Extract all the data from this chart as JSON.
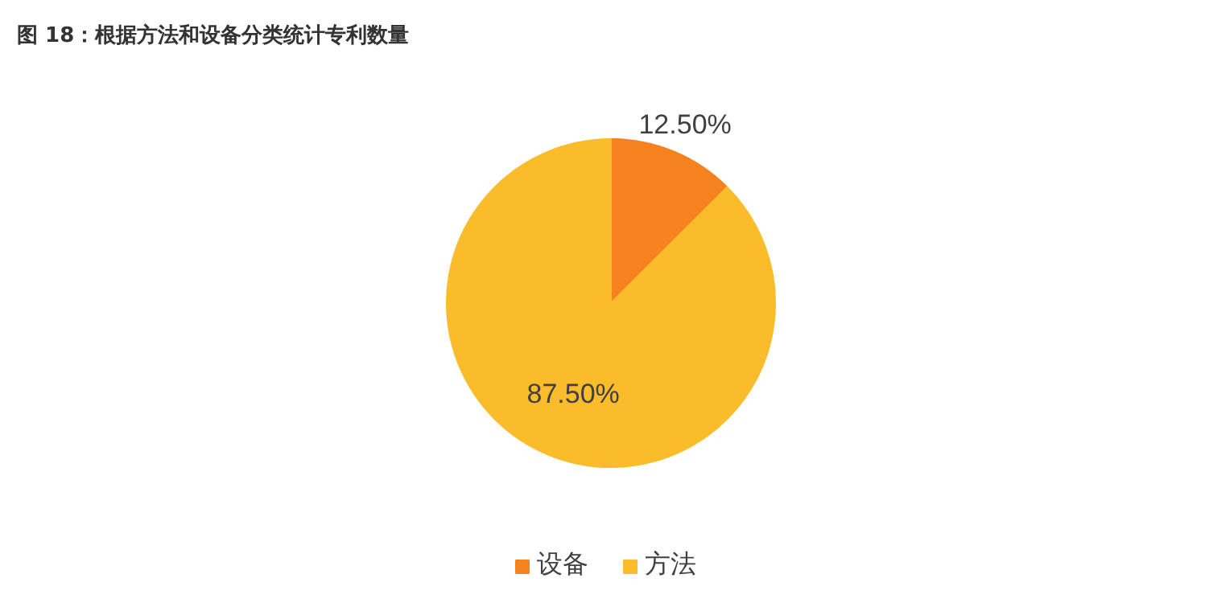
{
  "chart_data": {
    "type": "pie",
    "title": "图 18：根据方法和设备分类统计专利数量",
    "categories": [
      "设备",
      "方法"
    ],
    "values": [
      12.5,
      87.5
    ],
    "colors": [
      "#f5821f",
      "#fbbc2b"
    ],
    "value_labels": [
      "12.50%",
      "87.50%"
    ],
    "legend": "bottom"
  }
}
